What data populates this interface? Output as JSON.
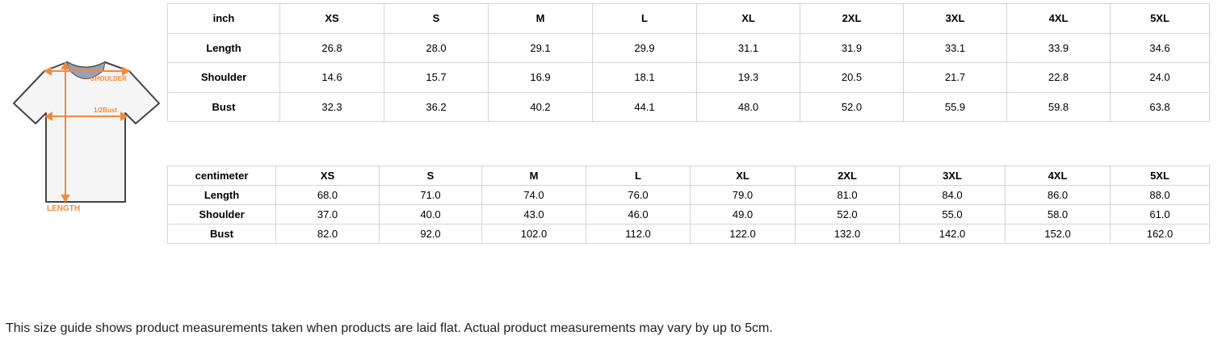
{
  "illustration": {
    "shoulder_label": "SHOULDER",
    "bust_label": "1/2Bust",
    "length_label": "LENGTH",
    "accent_color": "#f08a3c"
  },
  "inch_table": {
    "header": [
      "inch",
      "XS",
      "S",
      "M",
      "L",
      "XL",
      "2XL",
      "3XL",
      "4XL",
      "5XL"
    ],
    "rows": [
      [
        "Length",
        "26.8",
        "28.0",
        "29.1",
        "29.9",
        "31.1",
        "31.9",
        "33.1",
        "33.9",
        "34.6"
      ],
      [
        "Shoulder",
        "14.6",
        "15.7",
        "16.9",
        "18.1",
        "19.3",
        "20.5",
        "21.7",
        "22.8",
        "24.0"
      ],
      [
        "Bust",
        "32.3",
        "36.2",
        "40.2",
        "44.1",
        "48.0",
        "52.0",
        "55.9",
        "59.8",
        "63.8"
      ]
    ]
  },
  "cm_table": {
    "header": [
      "centimeter",
      "XS",
      "S",
      "M",
      "L",
      "XL",
      "2XL",
      "3XL",
      "4XL",
      "5XL"
    ],
    "rows": [
      [
        "Length",
        "68.0",
        "71.0",
        "74.0",
        "76.0",
        "79.0",
        "81.0",
        "84.0",
        "86.0",
        "88.0"
      ],
      [
        "Shoulder",
        "37.0",
        "40.0",
        "43.0",
        "46.0",
        "49.0",
        "52.0",
        "55.0",
        "58.0",
        "61.0"
      ],
      [
        "Bust",
        "82.0",
        "92.0",
        "102.0",
        "112.0",
        "122.0",
        "132.0",
        "142.0",
        "152.0",
        "162.0"
      ]
    ]
  },
  "note": "This size guide shows product measurements taken when products are laid flat. Actual product measurements may vary by up to 5cm."
}
